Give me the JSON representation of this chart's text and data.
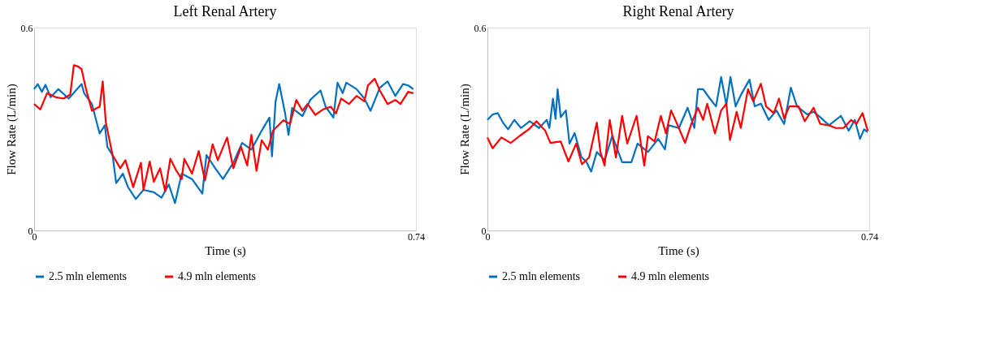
{
  "chart_data": [
    {
      "type": "line",
      "title": "Left Renal Artery",
      "xlabel": "Time (s)",
      "ylabel": "Flow Rate (L/min)",
      "xlim": [
        0,
        0.74
      ],
      "xticks": [
        0,
        0.74
      ],
      "ylim": [
        0,
        0.6
      ],
      "yticks": [
        0,
        0.6
      ],
      "grid": false,
      "legend": "bottom",
      "line_style": "solid",
      "marker": "none",
      "series": [
        {
          "name": "2.5 mln elements",
          "color": "#0070c0",
          "x": [
            0,
            0.007,
            0.015,
            0.022,
            0.032,
            0.047,
            0.067,
            0.092,
            0.097,
            0.112,
            0.127,
            0.137,
            0.142,
            0.152,
            0.159,
            0.172,
            0.182,
            0.197,
            0.212,
            0.232,
            0.247,
            0.261,
            0.273,
            0.286,
            0.306,
            0.326,
            0.334,
            0.351,
            0.366,
            0.386,
            0.403,
            0.421,
            0.441,
            0.456,
            0.461,
            0.468,
            0.475,
            0.486,
            0.493,
            0.5,
            0.52,
            0.535,
            0.555,
            0.565,
            0.58,
            0.588,
            0.598,
            0.605,
            0.625,
            0.64,
            0.652,
            0.67,
            0.685,
            0.7,
            0.715,
            0.725,
            0.735
          ],
          "values": [
            0.418,
            0.433,
            0.41,
            0.431,
            0.394,
            0.418,
            0.39,
            0.433,
            0.406,
            0.374,
            0.287,
            0.311,
            0.247,
            0.223,
            0.14,
            0.168,
            0.128,
            0.093,
            0.12,
            0.113,
            0.097,
            0.136,
            0.081,
            0.168,
            0.152,
            0.109,
            0.223,
            0.184,
            0.152,
            0.2,
            0.259,
            0.239,
            0.295,
            0.334,
            0.219,
            0.382,
            0.433,
            0.35,
            0.283,
            0.362,
            0.338,
            0.386,
            0.414,
            0.366,
            0.334,
            0.437,
            0.406,
            0.437,
            0.418,
            0.39,
            0.354,
            0.422,
            0.441,
            0.398,
            0.433,
            0.429,
            0.418
          ]
        },
        {
          "name": "4.9 mln elements",
          "color": "#ff0000",
          "x": [
            0,
            0.012,
            0.025,
            0.042,
            0.057,
            0.07,
            0.077,
            0.085,
            0.092,
            0.1,
            0.112,
            0.127,
            0.133,
            0.139,
            0.152,
            0.167,
            0.177,
            0.192,
            0.207,
            0.212,
            0.224,
            0.232,
            0.244,
            0.254,
            0.264,
            0.276,
            0.286,
            0.291,
            0.306,
            0.319,
            0.331,
            0.346,
            0.356,
            0.374,
            0.386,
            0.401,
            0.413,
            0.421,
            0.431,
            0.441,
            0.453,
            0.463,
            0.483,
            0.496,
            0.508,
            0.52,
            0.53,
            0.545,
            0.56,
            0.575,
            0.585,
            0.595,
            0.61,
            0.625,
            0.64,
            0.647,
            0.66,
            0.67,
            0.685,
            0.7,
            0.71,
            0.725,
            0.735
          ],
          "values": [
            0.374,
            0.358,
            0.406,
            0.394,
            0.39,
            0.402,
            0.489,
            0.485,
            0.477,
            0.422,
            0.354,
            0.366,
            0.441,
            0.319,
            0.223,
            0.184,
            0.208,
            0.128,
            0.2,
            0.12,
            0.204,
            0.144,
            0.184,
            0.116,
            0.212,
            0.176,
            0.152,
            0.212,
            0.168,
            0.235,
            0.148,
            0.255,
            0.208,
            0.275,
            0.184,
            0.247,
            0.192,
            0.283,
            0.176,
            0.267,
            0.239,
            0.295,
            0.326,
            0.315,
            0.386,
            0.354,
            0.374,
            0.342,
            0.358,
            0.366,
            0.346,
            0.39,
            0.374,
            0.398,
            0.382,
            0.429,
            0.449,
            0.414,
            0.374,
            0.386,
            0.374,
            0.41,
            0.406
          ]
        }
      ]
    },
    {
      "type": "line",
      "title": "Right Renal Artery",
      "xlabel": "Time (s)",
      "ylabel": "Flow Rate (L/min)",
      "xlim": [
        0,
        0.74
      ],
      "xticks": [
        0,
        0.74
      ],
      "ylim": [
        0,
        0.6
      ],
      "yticks": [
        0,
        0.6
      ],
      "grid": false,
      "legend": "bottom",
      "line_style": "solid",
      "marker": "none",
      "series": [
        {
          "name": "2.5 mln elements",
          "color": "#0070c0",
          "x": [
            0,
            0.01,
            0.02,
            0.03,
            0.04,
            0.052,
            0.065,
            0.082,
            0.1,
            0.115,
            0.12,
            0.127,
            0.132,
            0.136,
            0.142,
            0.152,
            0.159,
            0.169,
            0.182,
            0.192,
            0.201,
            0.212,
            0.227,
            0.242,
            0.261,
            0.279,
            0.291,
            0.311,
            0.331,
            0.344,
            0.351,
            0.371,
            0.388,
            0.401,
            0.408,
            0.418,
            0.431,
            0.443,
            0.453,
            0.463,
            0.471,
            0.481,
            0.493,
            0.508,
            0.518,
            0.53,
            0.545,
            0.56,
            0.575,
            0.588,
            0.6,
            0.62,
            0.632,
            0.645,
            0.662,
            0.685,
            0.7,
            0.712,
            0.722,
            0.73,
            0.737
          ],
          "values": [
            0.327,
            0.343,
            0.347,
            0.319,
            0.299,
            0.327,
            0.303,
            0.323,
            0.303,
            0.327,
            0.303,
            0.39,
            0.33,
            0.418,
            0.335,
            0.355,
            0.257,
            0.288,
            0.218,
            0.202,
            0.174,
            0.232,
            0.208,
            0.28,
            0.202,
            0.202,
            0.257,
            0.232,
            0.271,
            0.24,
            0.311,
            0.303,
            0.363,
            0.303,
            0.418,
            0.418,
            0.39,
            0.367,
            0.454,
            0.371,
            0.454,
            0.367,
            0.406,
            0.446,
            0.367,
            0.375,
            0.327,
            0.355,
            0.315,
            0.422,
            0.367,
            0.343,
            0.351,
            0.335,
            0.311,
            0.339,
            0.295,
            0.327,
            0.271,
            0.299,
            0.291
          ]
        },
        {
          "name": "4.9 mln elements",
          "color": "#ff0000",
          "x": [
            0,
            0.01,
            0.027,
            0.045,
            0.062,
            0.08,
            0.095,
            0.112,
            0.122,
            0.142,
            0.157,
            0.172,
            0.183,
            0.197,
            0.212,
            0.219,
            0.227,
            0.237,
            0.249,
            0.261,
            0.271,
            0.289,
            0.304,
            0.311,
            0.324,
            0.336,
            0.346,
            0.356,
            0.371,
            0.383,
            0.396,
            0.408,
            0.418,
            0.426,
            0.441,
            0.453,
            0.463,
            0.47,
            0.483,
            0.491,
            0.505,
            0.515,
            0.53,
            0.54,
            0.555,
            0.565,
            0.575,
            0.585,
            0.603,
            0.615,
            0.632,
            0.645,
            0.662,
            0.675,
            0.69,
            0.705,
            0.715,
            0.727,
            0.737
          ],
          "values": [
            0.275,
            0.243,
            0.275,
            0.259,
            0.279,
            0.299,
            0.323,
            0.295,
            0.259,
            0.263,
            0.204,
            0.257,
            0.196,
            0.216,
            0.319,
            0.232,
            0.192,
            0.327,
            0.216,
            0.339,
            0.257,
            0.339,
            0.192,
            0.279,
            0.263,
            0.339,
            0.287,
            0.355,
            0.303,
            0.259,
            0.319,
            0.363,
            0.327,
            0.375,
            0.287,
            0.355,
            0.375,
            0.267,
            0.351,
            0.303,
            0.418,
            0.382,
            0.434,
            0.367,
            0.347,
            0.39,
            0.331,
            0.367,
            0.367,
            0.323,
            0.363,
            0.315,
            0.311,
            0.303,
            0.303,
            0.327,
            0.315,
            0.347,
            0.295
          ]
        }
      ]
    }
  ]
}
